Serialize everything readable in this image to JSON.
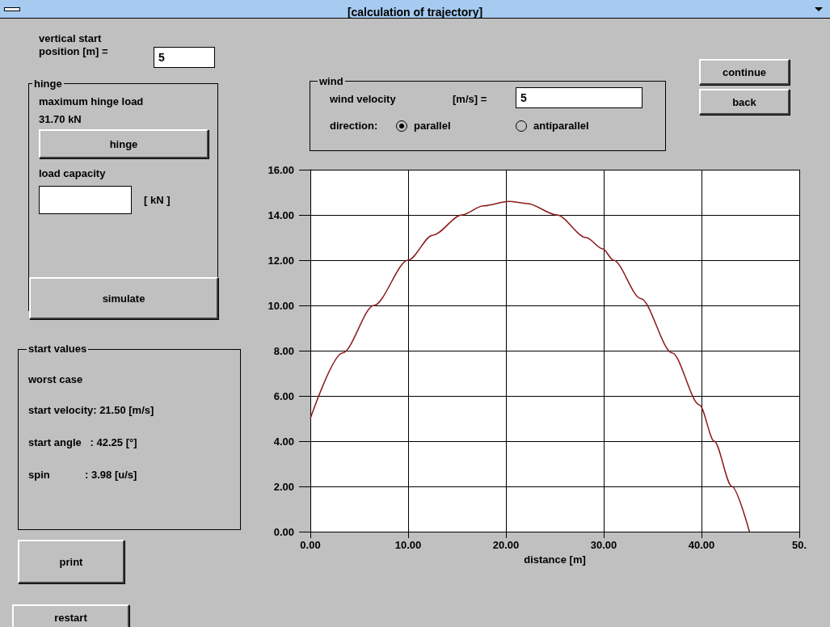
{
  "chart_data": [
    {
      "type": "line",
      "title": "[calculation of trajectory]",
      "xlabel": "distance [m]",
      "x": [
        0,
        3.3,
        6.5,
        10,
        12.5,
        15.5,
        17.7,
        20.3,
        22.2,
        25.2,
        28.2,
        29.9,
        31.0,
        33.8,
        37.0,
        39.8,
        41.3,
        43.1,
        44.9
      ],
      "series": [
        {
          "color": "#8b1a1a",
          "values": [
            5.0,
            7.9,
            10.0,
            12.0,
            13.1,
            14.0,
            14.4,
            14.6,
            14.5,
            14.0,
            13.0,
            12.5,
            12.0,
            10.3,
            7.9,
            5.6,
            4.0,
            2.0,
            0
          ]
        }
      ],
      "xlim": [
        0,
        50
      ],
      "xticks": [
        {
          "value": 0,
          "label": "0.00"
        },
        {
          "value": 10,
          "label": "10.00"
        },
        {
          "value": 20,
          "label": "20.00"
        },
        {
          "value": 30,
          "label": "30.00"
        },
        {
          "value": 40,
          "label": "40.00"
        },
        {
          "value": 50,
          "label": "50."
        }
      ],
      "ylim": [
        0,
        16
      ],
      "yticks": [
        {
          "value": 0,
          "label": "0.00"
        },
        {
          "value": 2,
          "label": "2.00"
        },
        {
          "value": 4,
          "label": "4.00"
        },
        {
          "value": 6,
          "label": "6.00"
        },
        {
          "value": 8,
          "label": "8.00"
        },
        {
          "value": 10,
          "label": "10.00"
        },
        {
          "value": 12,
          "label": "12.00"
        },
        {
          "value": 14,
          "label": "14.00"
        },
        {
          "value": 16,
          "label": "16.00"
        }
      ],
      "grid": true,
      "marker": "none",
      "line_style": "solid"
    },
    {
      "type": "other",
      "annotations": [
        "vertical start position [m] =",
        "5",
        "hinge",
        "maximum hinge load",
        "31.70 kN",
        "hinge",
        "load capacity",
        "[ kN ]",
        "simulate",
        "start values",
        "worst case",
        "start velocity: 21.50 [m/s]",
        "start angle   : 42.25 [°]",
        "spin            : 3.98 [u/s]",
        "print",
        "restart",
        "wind",
        "wind velocity",
        "[m/s] =",
        "5",
        "direction:",
        "parallel",
        "antiparallel",
        "continue",
        "back"
      ]
    }
  ]
}
